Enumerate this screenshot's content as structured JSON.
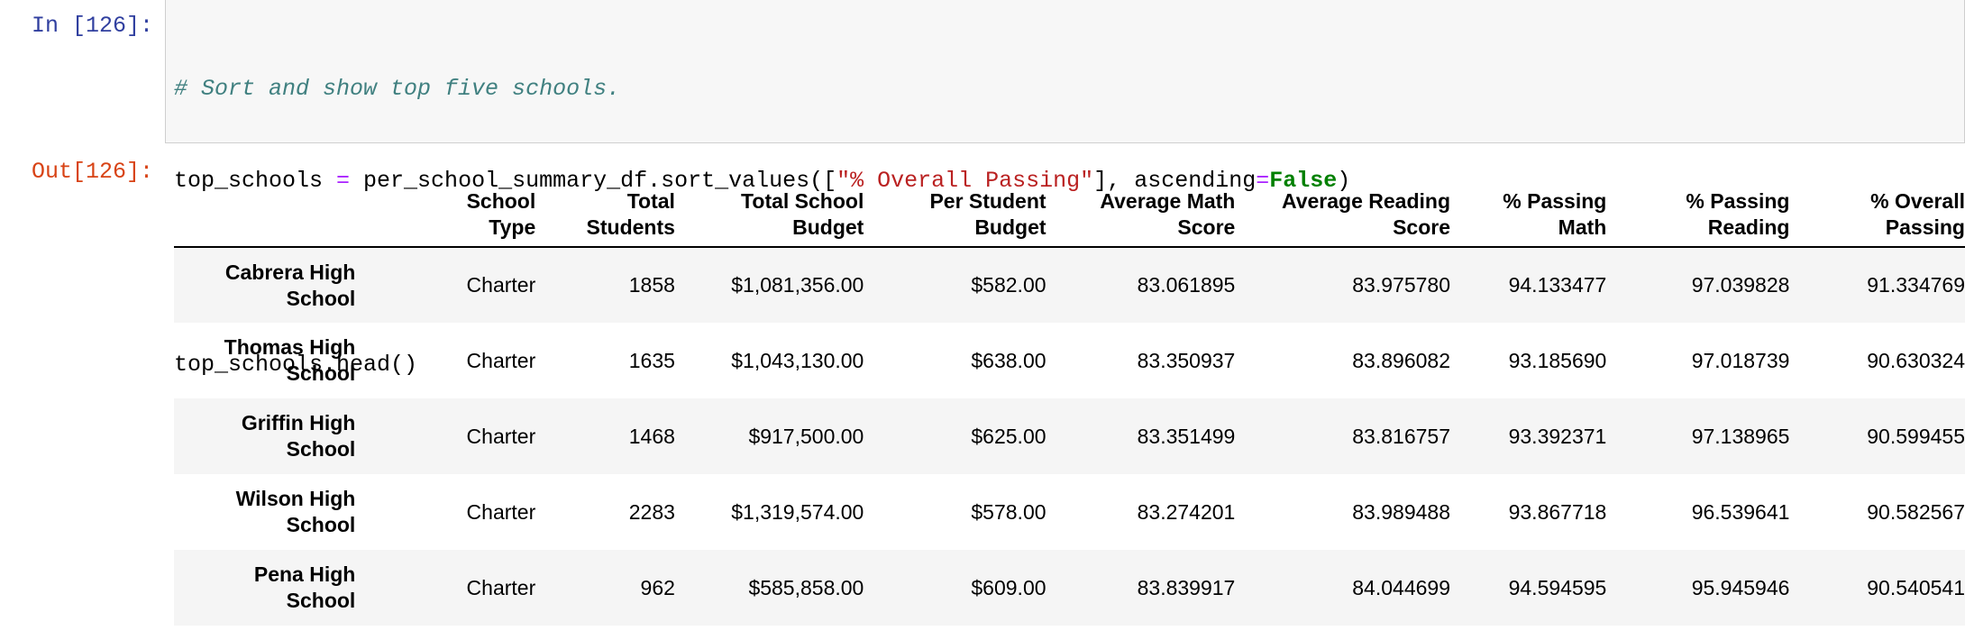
{
  "input_prompt": "In [126]:",
  "output_prompt": "Out[126]:",
  "code": {
    "comment": "# Sort and show top five schools.",
    "line2_var": "top_schools",
    "line2_eq": " = ",
    "line2_call": "per_school_summary_df.sort_values([",
    "line2_str": "\"% Overall Passing\"",
    "line2_mid": "], ascending",
    "line2_kwop": "=",
    "line2_kw": "False",
    "line2_end": ")",
    "line4": "top_schools.head()"
  },
  "table": {
    "columns": [
      {
        "line1": "School",
        "line2": "Type"
      },
      {
        "line1": "Total",
        "line2": "Students"
      },
      {
        "line1": "Total School",
        "line2": "Budget"
      },
      {
        "line1": "Per Student",
        "line2": "Budget"
      },
      {
        "line1": "Average Math",
        "line2": "Score"
      },
      {
        "line1": "Average Reading",
        "line2": "Score"
      },
      {
        "line1": "% Passing",
        "line2": "Math"
      },
      {
        "line1": "% Passing",
        "line2": "Reading"
      },
      {
        "line1": "% Overall",
        "line2": "Passing"
      }
    ],
    "rows": [
      {
        "index1": "Cabrera High",
        "index2": "School",
        "cells": [
          "Charter",
          "1858",
          "$1,081,356.00",
          "$582.00",
          "83.061895",
          "83.975780",
          "94.133477",
          "97.039828",
          "91.334769"
        ]
      },
      {
        "index1": "Thomas High",
        "index2": "School",
        "cells": [
          "Charter",
          "1635",
          "$1,043,130.00",
          "$638.00",
          "83.350937",
          "83.896082",
          "93.185690",
          "97.018739",
          "90.630324"
        ]
      },
      {
        "index1": "Griffin High",
        "index2": "School",
        "cells": [
          "Charter",
          "1468",
          "$917,500.00",
          "$625.00",
          "83.351499",
          "83.816757",
          "93.392371",
          "97.138965",
          "90.599455"
        ]
      },
      {
        "index1": "Wilson High",
        "index2": "School",
        "cells": [
          "Charter",
          "2283",
          "$1,319,574.00",
          "$578.00",
          "83.274201",
          "83.989488",
          "93.867718",
          "96.539641",
          "90.582567"
        ]
      },
      {
        "index1": "Pena High",
        "index2": "School",
        "cells": [
          "Charter",
          "962",
          "$585,858.00",
          "$609.00",
          "83.839917",
          "84.044699",
          "94.594595",
          "95.945946",
          "90.540541"
        ]
      }
    ]
  },
  "colors": {
    "prompt_in": "#303f9f",
    "prompt_out": "#d84315",
    "comment": "#408080",
    "operator": "#aa22ff",
    "string": "#ba2121",
    "keyword": "#008000",
    "row_stripe": "#f5f5f5"
  }
}
